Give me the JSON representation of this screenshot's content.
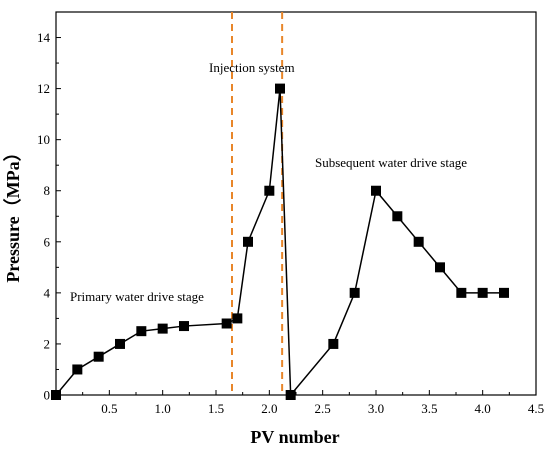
{
  "chart_data": {
    "type": "line",
    "xlabel": "PV number",
    "ylabel": "Pressure（MPa）",
    "xlim": [
      0,
      4.5
    ],
    "ylim": [
      0,
      15
    ],
    "x_ticks": [
      "0.5",
      "1.0",
      "1.5",
      "2.0",
      "2.5",
      "3.0",
      "3.5",
      "4.0",
      "4.5"
    ],
    "y_ticks": [
      "0",
      "2",
      "4",
      "6",
      "8",
      "10",
      "12",
      "14"
    ],
    "grid": false,
    "series": [
      {
        "points": [
          [
            0.0,
            0
          ],
          [
            0.2,
            1.0
          ],
          [
            0.4,
            1.5
          ],
          [
            0.6,
            2.0
          ],
          [
            0.8,
            2.5
          ],
          [
            1.0,
            2.6
          ],
          [
            1.2,
            2.7
          ],
          [
            1.6,
            2.8
          ],
          [
            1.7,
            3.0
          ],
          [
            1.8,
            6.0
          ],
          [
            2.0,
            8.0
          ],
          [
            2.1,
            12.0
          ],
          [
            2.2,
            0
          ],
          [
            2.6,
            2.0
          ],
          [
            2.8,
            4.0
          ],
          [
            3.0,
            8.0
          ],
          [
            3.2,
            7.0
          ],
          [
            3.4,
            6.0
          ],
          [
            3.6,
            5.0
          ],
          [
            3.8,
            4.0
          ],
          [
            4.0,
            4.0
          ],
          [
            4.2,
            4.0
          ]
        ]
      }
    ],
    "reference_lines_x": [
      1.65,
      2.12
    ],
    "annotations": {
      "stage1": "Primary water drive stage",
      "injection": "Injection system",
      "stage3": "Subsequent water drive stage"
    },
    "colors": {
      "series": "#000000",
      "reference": "#E8862A"
    }
  }
}
